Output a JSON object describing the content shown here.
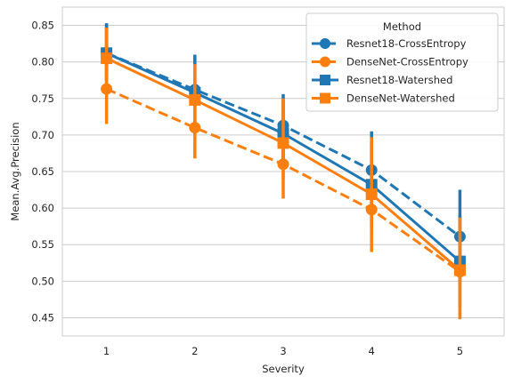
{
  "chart_data": {
    "type": "line",
    "title": "",
    "xlabel": "Severity",
    "ylabel": "Mean.Avg.Precision",
    "categories": [
      "1",
      "2",
      "3",
      "4",
      "5"
    ],
    "ylim": [
      0.425,
      0.875
    ],
    "yticks": [
      "0.45",
      "0.50",
      "0.55",
      "0.60",
      "0.65",
      "0.70",
      "0.75",
      "0.80",
      "0.85"
    ],
    "grid": true,
    "legend": {
      "title": "Method",
      "placement": "top-right"
    },
    "series": [
      {
        "name": "Resnet18-CrossEntropy",
        "color": "#1f77b4",
        "marker": "circle",
        "dashed": true,
        "values": [
          0.812,
          0.762,
          0.713,
          0.652,
          0.561
        ],
        "ci_low": [
          0.775,
          0.715,
          0.665,
          0.6,
          0.5
        ],
        "ci_high": [
          0.853,
          0.81,
          0.756,
          0.705,
          0.625
        ]
      },
      {
        "name": "DenseNet-CrossEntropy",
        "color": "#ff7f0e",
        "marker": "circle",
        "dashed": true,
        "values": [
          0.763,
          0.71,
          0.66,
          0.598,
          0.513
        ],
        "ci_low": [
          0.715,
          0.668,
          0.613,
          0.54,
          0.448
        ],
        "ci_high": [
          0.808,
          0.755,
          0.708,
          0.655,
          0.575
        ]
      },
      {
        "name": "Resnet18-Watershed",
        "color": "#1f77b4",
        "marker": "square",
        "dashed": false,
        "values": [
          0.812,
          0.758,
          0.702,
          0.632,
          0.527
        ],
        "ci_low": [
          0.775,
          0.712,
          0.655,
          0.575,
          0.465
        ],
        "ci_high": [
          0.852,
          0.805,
          0.748,
          0.69,
          0.59
        ]
      },
      {
        "name": "DenseNet-Watershed",
        "color": "#ff7f0e",
        "marker": "square",
        "dashed": false,
        "values": [
          0.805,
          0.748,
          0.689,
          0.619,
          0.515
        ],
        "ci_low": [
          0.762,
          0.7,
          0.64,
          0.56,
          0.45
        ],
        "ci_high": [
          0.847,
          0.797,
          0.75,
          0.697,
          0.587
        ]
      }
    ]
  }
}
